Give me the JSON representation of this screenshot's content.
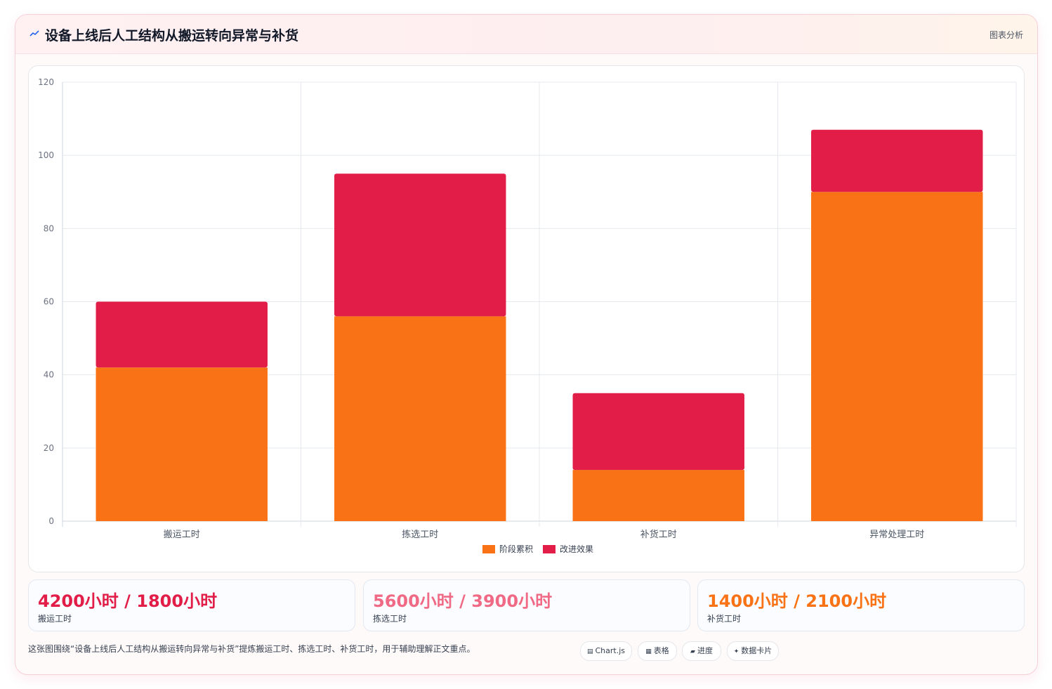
{
  "header": {
    "title": "设备上线后人工结构从搬运转向异常与补货",
    "tag": "图表分析"
  },
  "chart_data": {
    "type": "bar",
    "stacked": true,
    "categories": [
      "搬运工时",
      "拣选工时",
      "补货工时",
      "异常处理工时"
    ],
    "series": [
      {
        "name": "阶段累积",
        "values": [
          42,
          56,
          14,
          90
        ],
        "color": "#f97316"
      },
      {
        "name": "改进效果",
        "values": [
          18,
          39,
          21,
          17
        ],
        "color": "#e11d48"
      }
    ],
    "ylim": [
      0,
      120
    ],
    "yticks": [
      0,
      20,
      40,
      60,
      80,
      100,
      120
    ],
    "grid": true,
    "legend": "bottom"
  },
  "stats": [
    {
      "value": "4200小时 / 1800小时",
      "label": "搬运工时",
      "color": "#e11d48"
    },
    {
      "value": "5600小时 / 3900小时",
      "label": "拣选工时",
      "color": "#f06a85"
    },
    {
      "value": "1400小时 / 2100小时",
      "label": "补货工时",
      "color": "#f97316"
    }
  ],
  "caption": "这张图围绕“设备上线后人工结构从搬运转向异常与补货”提炼搬运工时、拣选工时、补货工时，用于辅助理解正文重点。",
  "chips": [
    {
      "glyph": "▤",
      "label": "Chart.js"
    },
    {
      "glyph": "▦",
      "label": "表格"
    },
    {
      "glyph": "▰",
      "label": "进度"
    },
    {
      "glyph": "✦",
      "label": "数据卡片"
    }
  ]
}
